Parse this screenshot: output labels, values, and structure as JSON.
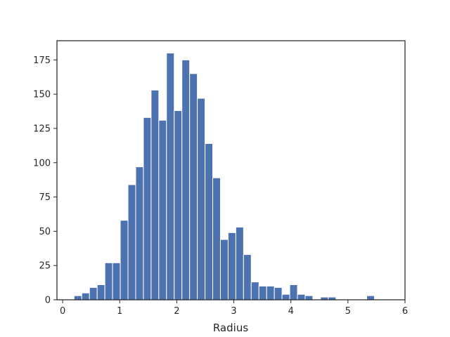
{
  "chart_data": {
    "type": "bar",
    "bin_edges": [
      0.2,
      0.335,
      0.47,
      0.605,
      0.74,
      0.875,
      1.01,
      1.145,
      1.28,
      1.415,
      1.55,
      1.685,
      1.82,
      1.955,
      2.09,
      2.225,
      2.36,
      2.495,
      2.63,
      2.765,
      2.9,
      3.035,
      3.17,
      3.305,
      3.44,
      3.575,
      3.71,
      3.845,
      3.98,
      4.115,
      4.25,
      4.385,
      4.52,
      4.655,
      4.79,
      4.925,
      5.06,
      5.195,
      5.33,
      5.465
    ],
    "values": [
      3,
      5,
      9,
      11,
      27,
      27,
      58,
      84,
      97,
      133,
      153,
      131,
      180,
      138,
      175,
      165,
      147,
      114,
      89,
      44,
      49,
      53,
      33,
      13,
      10,
      10,
      9,
      4,
      11,
      4,
      3,
      0,
      2,
      2,
      0,
      0,
      0,
      0,
      3
    ],
    "xlabel": "Radius",
    "ylabel": "",
    "title": "",
    "xlim": [
      -0.1,
      6.0
    ],
    "ylim": [
      0,
      189
    ],
    "xticks": [
      0,
      1,
      2,
      3,
      4,
      5,
      6
    ],
    "yticks": [
      0,
      25,
      50,
      75,
      100,
      125,
      150,
      175
    ],
    "grid": false,
    "colors": {
      "bar": "#4c72b0",
      "axis": "#262626"
    }
  }
}
